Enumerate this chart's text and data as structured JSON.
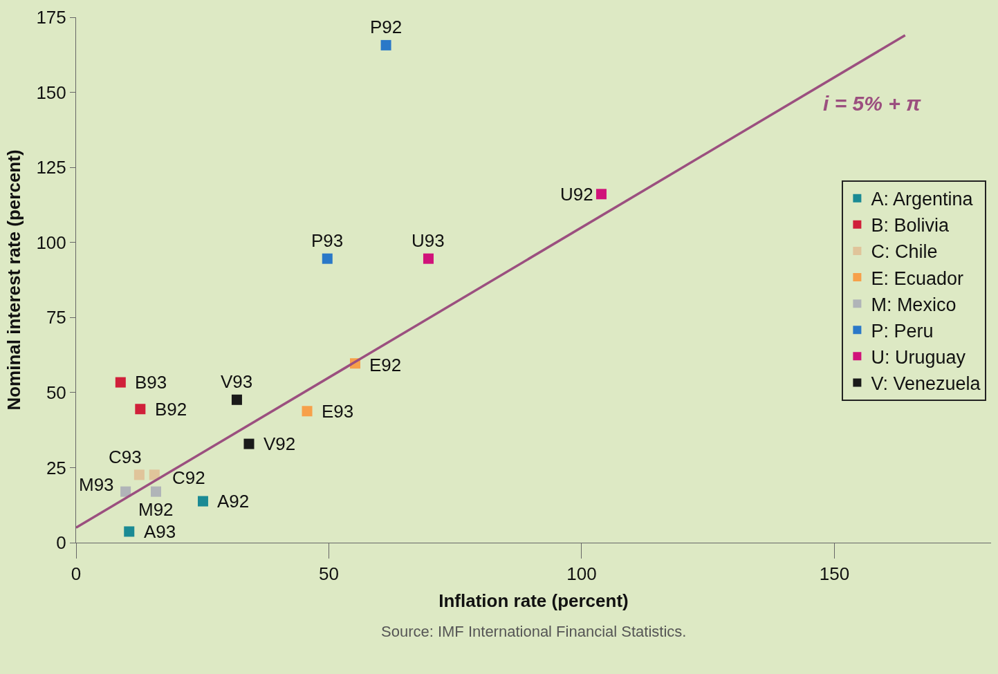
{
  "chart_data": {
    "type": "scatter",
    "xlabel": "Inflation rate (percent)",
    "ylabel": "Nominal interest rate (percent)",
    "xlim": [
      0,
      181
    ],
    "ylim": [
      0,
      175
    ],
    "xticks": [
      0,
      50,
      100,
      150
    ],
    "yticks": [
      0,
      25,
      50,
      75,
      100,
      125,
      150,
      175
    ],
    "marker": "square",
    "grid": false,
    "legend": "right",
    "series": [
      {
        "name": "A: Argentina",
        "color": "#1a8a94",
        "x": [
          25.1,
          10.5
        ],
        "values": [
          13.8,
          3.7
        ]
      },
      {
        "name": "B: Bolivia",
        "color": "#d0203a",
        "x": [
          12.7,
          8.8
        ],
        "values": [
          44.5,
          53.4
        ]
      },
      {
        "name": "C: Chile",
        "color": "#e0c49a",
        "x": [
          15.5,
          12.5
        ],
        "values": [
          22.6,
          22.6
        ]
      },
      {
        "name": "E: Ecuador",
        "color": "#f7a04a",
        "x": [
          55.2,
          45.7
        ],
        "values": [
          59.7,
          43.8
        ]
      },
      {
        "name": "M: Mexico",
        "color": "#b0b4b8",
        "x": [
          15.8,
          9.8
        ],
        "values": [
          17.0,
          17.0
        ]
      },
      {
        "name": "P: Peru",
        "color": "#2a78c8",
        "x": [
          61.3,
          49.7
        ],
        "values": [
          165.7,
          94.6
        ]
      },
      {
        "name": "U: Uruguay",
        "color": "#d0127a",
        "x": [
          103.9,
          69.7
        ],
        "values": [
          116.1,
          94.6
        ]
      },
      {
        "name": "V: Venezuela",
        "color": "#1a1a1a",
        "x": [
          34.2,
          31.8
        ],
        "values": [
          32.9,
          47.6
        ]
      },
      {
        "type": "line",
        "name": "i = 5% + π",
        "marker": "none",
        "color": "#9b4f7f",
        "x": [
          0,
          164
        ],
        "values": [
          5,
          169
        ]
      }
    ],
    "annotations": [
      {
        "text": "P92",
        "x": 61.3,
        "y": 165.7
      },
      {
        "text": "U92",
        "x": 103.9,
        "y": 116.1
      },
      {
        "text": "P93",
        "x": 49.7,
        "y": 94.6
      },
      {
        "text": "U93",
        "x": 69.7,
        "y": 94.6
      },
      {
        "text": "E92",
        "x": 55.2,
        "y": 59.7
      },
      {
        "text": "B93",
        "x": 8.8,
        "y": 53.4
      },
      {
        "text": "V93",
        "x": 31.8,
        "y": 47.6
      },
      {
        "text": "B92",
        "x": 12.7,
        "y": 44.5
      },
      {
        "text": "E93",
        "x": 45.7,
        "y": 43.8
      },
      {
        "text": "V92",
        "x": 34.2,
        "y": 32.9
      },
      {
        "text": "C93",
        "x": 12.5,
        "y": 22.6
      },
      {
        "text": "C92",
        "x": 15.5,
        "y": 22.6
      },
      {
        "text": "M93",
        "x": 9.8,
        "y": 17.0
      },
      {
        "text": "M92",
        "x": 15.8,
        "y": 17.0
      },
      {
        "text": "A92",
        "x": 25.1,
        "y": 13.8
      },
      {
        "text": "A93",
        "x": 10.5,
        "y": 3.7
      },
      "Source: IMF International Financial Statistics."
    ]
  }
}
